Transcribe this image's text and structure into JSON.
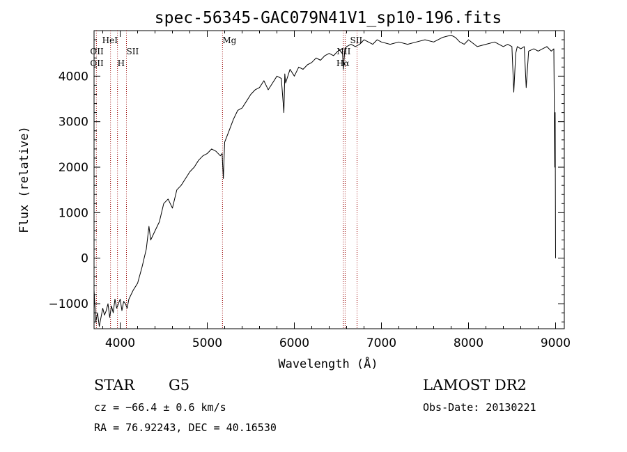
{
  "chart_data": {
    "type": "line",
    "title": "spec-56345-GAC079N41V1_sp10-196.fits",
    "xlabel": "Wavelength (Å)",
    "ylabel": "Flux (relative)",
    "xlim": [
      3700,
      9100
    ],
    "ylim": [
      -1550,
      5000
    ],
    "x_ticks": [
      4000,
      5000,
      6000,
      7000,
      8000,
      9000
    ],
    "x_tick_labels": [
      "4000",
      "5000",
      "6000",
      "7000",
      "8000",
      "9000"
    ],
    "y_ticks": [
      -1000,
      0,
      1000,
      2000,
      3000,
      4000
    ],
    "y_tick_labels": [
      "−1000",
      "0",
      "1000",
      "2000",
      "3000",
      "4000"
    ],
    "grid": false,
    "series": [
      {
        "x": [
          3700,
          3720,
          3740,
          3760,
          3780,
          3800,
          3820,
          3840,
          3860,
          3880,
          3900,
          3920,
          3940,
          3960,
          3980,
          4000,
          4020,
          4040,
          4060,
          4080,
          4100,
          4150,
          4200,
          4250,
          4300,
          4330,
          4350,
          4400,
          4450,
          4500,
          4550,
          4600,
          4650,
          4700,
          4750,
          4800,
          4850,
          4900,
          4950,
          5000,
          5050,
          5100,
          5150,
          5170,
          5185,
          5200,
          5250,
          5300,
          5350,
          5400,
          5450,
          5500,
          5550,
          5600,
          5650,
          5700,
          5750,
          5800,
          5850,
          5880,
          5890,
          5900,
          5950,
          6000,
          6050,
          6100,
          6150,
          6200,
          6250,
          6300,
          6350,
          6400,
          6450,
          6500,
          6550,
          6563,
          6580,
          6600,
          6650,
          6700,
          6750,
          6800,
          6850,
          6900,
          6950,
          7000,
          7100,
          7200,
          7300,
          7400,
          7500,
          7600,
          7700,
          7800,
          7850,
          7900,
          7950,
          8000,
          8100,
          8200,
          8300,
          8400,
          8450,
          8498,
          8520,
          8542,
          8560,
          8600,
          8640,
          8662,
          8690,
          8750,
          8800,
          8850,
          8900,
          8950,
          8980,
          8990,
          8995,
          9000
        ],
        "y": [
          -700,
          -1400,
          -1200,
          -1500,
          -1300,
          -1100,
          -1250,
          -1150,
          -1000,
          -1300,
          -1050,
          -1200,
          -900,
          -1100,
          -1000,
          -900,
          -1150,
          -950,
          -1000,
          -1100,
          -900,
          -700,
          -550,
          -200,
          200,
          700,
          400,
          600,
          800,
          1200,
          1300,
          1100,
          1500,
          1600,
          1750,
          1900,
          2000,
          2150,
          2250,
          2300,
          2400,
          2350,
          2250,
          2300,
          1750,
          2550,
          2800,
          3050,
          3250,
          3300,
          3450,
          3600,
          3700,
          3750,
          3900,
          3700,
          3850,
          4000,
          3950,
          3200,
          4050,
          3850,
          4150,
          4000,
          4200,
          4150,
          4250,
          4300,
          4400,
          4350,
          4450,
          4500,
          4450,
          4550,
          4600,
          4150,
          4600,
          4650,
          4700,
          4650,
          4700,
          4800,
          4750,
          4700,
          4800,
          4750,
          4700,
          4750,
          4700,
          4750,
          4800,
          4750,
          4850,
          4900,
          4850,
          4750,
          4700,
          4800,
          4650,
          4700,
          4750,
          4650,
          4700,
          4650,
          3650,
          4500,
          4650,
          4600,
          4650,
          3750,
          4550,
          4600,
          4550,
          4600,
          4650,
          4550,
          4600,
          2000,
          3200,
          0
        ]
      }
    ],
    "lines": [
      {
        "x": 3727,
        "label": "OII",
        "label2": "OII"
      },
      {
        "x": 3889,
        "label": "HeI"
      },
      {
        "x": 3969,
        "label": "H"
      },
      {
        "x": 4072,
        "label": "SII"
      },
      {
        "x": 5175,
        "label": "Mg"
      },
      {
        "x": 6563,
        "label": "Hα"
      },
      {
        "x": 6583,
        "label": "NII"
      },
      {
        "x": 6720,
        "label": "SII"
      }
    ],
    "line_color": "#990000"
  },
  "info": {
    "classification": "STAR",
    "subclass": "G5",
    "cz": "cz = −66.4 ± 0.6 km/s",
    "coords": "RA =  76.92243, DEC =  40.16530",
    "survey": "LAMOST DR2",
    "obs_date": "Obs-Date: 20130221"
  }
}
